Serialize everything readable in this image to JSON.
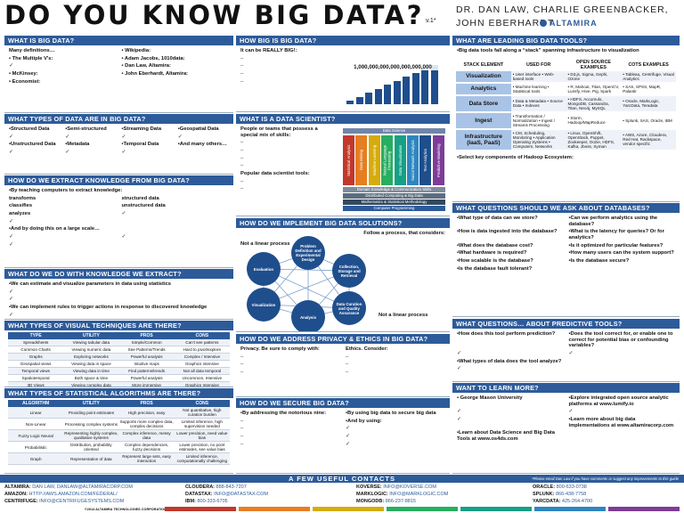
{
  "header": {
    "title": "DO YOU KNOW BIG DATA?",
    "version": "v.1*",
    "authors": "DR. DAN LAW, CHARLIE GREENBACKER, JOHN EBERHARDT",
    "logo": "ALTAMIRA"
  },
  "columns": [
    [
      {
        "title": "WHAT IS BIG DATA?",
        "items": [
          "Many definitions…",
          "• The Multiple V's:",
          "✓",
          "• McKinsey:",
          "• Economist:",
          "• Wikipedia:",
          "• Adam Jacobs, 1010data:",
          "• Dan Law, Altamira:",
          "• John Eberhardt, Altamira:"
        ]
      },
      {
        "title": "WHAT TYPES OF DATA ARE IN BIG DATA?",
        "items": [
          "•Structured Data",
          "•Semi-structured",
          "•Streaming Data",
          "•Geospatial Data",
          "✓",
          "✓",
          "✓",
          "✓",
          "•Unstructured Data",
          "•Metadata",
          "•Temporal Data",
          "•And many others…",
          "✓",
          "✓",
          "✓"
        ]
      },
      {
        "title": "HOW DO WE EXTRACT KNOWLEDGE FROM BIG DATA?",
        "items": [
          "•By teaching computers to extract knowledge:",
          "transforms",
          "structured data",
          "classifies",
          "unstructured data",
          "analyzes",
          "✓",
          "✓",
          "•And by doing this on a large scale…",
          "✓",
          "✓",
          "✓"
        ]
      },
      {
        "title": "WHAT DO WE DO WITH KNOWLEDGE WE EXTRACT?",
        "items": [
          "•We can estimate and visualize parameters in data using statistics",
          "✓",
          "✓",
          "•We can implement rules to trigger actions in response to discovered knowledge",
          "✓"
        ]
      },
      {
        "title": "WHAT TYPES OF VISUAL TECHNIQUES ARE THERE?",
        "table": {
          "headers": [
            "TYPE",
            "UTILITY",
            "PROS",
            "CONS"
          ],
          "rows": [
            [
              "Spreadsheets",
              "Viewing tabular data",
              "Simple/Common",
              "Can't see patterns"
            ],
            [
              "Common Charts",
              "Viewing numeric data",
              "See Patterns/Trends",
              "Hard to pivot/explore"
            ],
            [
              "Graphs",
              "Exploring networks",
              "Powerful analysis",
              "Complex / Intensive"
            ],
            [
              "Geospatial views",
              "Viewing data in space",
              "Intuitive maps",
              "Graphics intensive"
            ],
            [
              "Temporal views",
              "Viewing data in time",
              "Find patterns/trends",
              "Not all data temporal"
            ],
            [
              "Spatiotemporal",
              "Both space & time",
              "Powerful analysis",
              "Uncommon, Intensive"
            ],
            [
              "3D Views",
              "Viewing complex data",
              "More immersive",
              "Graphics Intensive"
            ],
            [
              "Spatiotemporal",
              "Immersive visualization",
              "Intuitive / Powerful",
              "Specialized Hardware"
            ]
          ]
        }
      },
      {
        "title": "WHAT TYPES OF STATISTICAL ALGORITHMS ARE THERE?",
        "table": {
          "headers": [
            "ALGORITHM",
            "UTILITY",
            "PROS",
            "CONS"
          ],
          "rows": [
            [
              "Linear",
              "Providing point estimates",
              "High precision, easy",
              "Not quantitative, high curation burden"
            ],
            [
              "Non-Linear",
              "Processing complex systems",
              "Supports more complex data, complex decisions",
              "Limited inference, high supervision needed"
            ],
            [
              "Fuzzy Logic Neural",
              "Representing highly complex, qualitative systems",
              "Complex inference, messy data",
              "Lower precision, need value bias"
            ],
            [
              "Probabilistic",
              "Distribution, probability oriented",
              "Complex dependencies, fuzzy decisions",
              "Lower precision, no point estimates, see value bias"
            ],
            [
              "Graph",
              "Representation of data",
              "Represent large sets, easy interaction",
              "Limited inference, computationally challenging"
            ]
          ]
        }
      }
    ],
    [
      {
        "title": "HOW BIG IS BIG DATA?",
        "items": [
          "It can be REALLY BIG!:",
          "–",
          "–",
          "–",
          "–"
        ],
        "figure_label": "1,000,000,000,000,000,000,000"
      },
      {
        "title": "WHAT IS A DATA SCIENTIST?",
        "items": [
          "People or teams that possess a special mix of skills:",
          "–",
          "–",
          "–",
          "–",
          "Popular data scientist tools:",
          "–",
          "–"
        ],
        "diagram": {
          "top": "Data Science",
          "pillars": [
            "Statistical Analysis",
            "Data Mining",
            "Machine Learning",
            "Natural Language Processing",
            "Data Visualization",
            "Social Network Analysis",
            "Text Analytics",
            "Predictive Modeling"
          ],
          "base": [
            "Domain Knowledge & Communication Skills",
            "Distributed Computing & Big Data",
            "Mathematics & Statistical Methodology",
            "Computer Programming"
          ]
        }
      },
      {
        "title": "HOW DO WE IMPLEMENT BIG DATA SOLUTIONS?",
        "items": [
          "Follow a process, that considers:"
        ],
        "steps": [
          "Problem Definition and Experimental Design",
          "Collection, Storage and Retrieval",
          "Data Curation and Quality Assurance",
          "Analysis",
          "Visualization",
          "Evaluation"
        ],
        "note": "Not a linear process"
      },
      {
        "title": "HOW DO WE ADDRESS PRIVACY & ETHICS IN BIG DATA?",
        "items": [
          "Privacy. Be sure to comply with:",
          "Ethics. Consider:",
          "–",
          "–",
          "–",
          "–",
          "–",
          "–"
        ]
      },
      {
        "title": "HOW DO WE SECURE BIG DATA?",
        "items": [
          "•By addressing the notorious nine:",
          "–",
          "–",
          "–",
          "–",
          "•By using big data to secure big data",
          "•And by using:",
          "✓",
          "✓",
          "✓"
        ]
      }
    ],
    [
      {
        "title": "WHAT ARE LEADING BIG DATA TOOLS?",
        "items": [
          "•Big data tools fall along a “stack” spanning infrastructure to visualization"
        ],
        "table": {
          "headers": [
            "STACK ELEMENT",
            "USED FOR",
            "OPEN SOURCE EXAMPLES",
            "COTS EXAMPLES"
          ],
          "rows": [
            [
              "Visualization",
              "• User interface • Web-based tools",
              "• D3.js, Sigma, Gephi, Ozone",
              "• Tableau, Centrifuge, Visual Analytics"
            ],
            [
              "Analytics",
              "• Machine learning • Statistical tools",
              "• R, Mahout, Titan, OpenCV, Lumify, Hive, Pig, Spark",
              "• SAS, SPSS, MapR, Palantir"
            ],
            [
              "Data Store",
              "• Data & Metadata • Source Data • Indexes",
              "• HDFS, Accumulo, MongoDB, Cassandra, Titan, Neo4j, MySQL",
              "• Oracle, MarkLogic, YarcData, Teradata"
            ],
            [
              "Ingest",
              "• Transformation / Normalization • Ingest / Streams Processing",
              "• Storm, Hadoop/MapReduce",
              "• Splunk, SAS, Oracle, IBM"
            ],
            [
              "Infrastructure (IaaS, PaaS)",
              "• CM, Scheduling, Monitoring • Application Operating Systems • Computers, Networks",
              "• Linux, OpenShift, OpenStack, Puppet, Zookeeper, Oozie, HDFS, Kafka, Jboss, Xyman",
              "• AWS, Azure, Cloudera, Red Hat, Rackspace, vendor specific"
            ]
          ]
        },
        "note": "•Select key components of Hadoop Ecosystem:"
      },
      {
        "title": "WHAT QUESTIONS SHOULD WE ASK ABOUT DATABASES?",
        "items": [
          "•What type of data can we store?",
          "•How is data ingested into the database?",
          "•What does the database cost?",
          "•What hardware is required?",
          "•How scalable is the database?",
          "•Is the database fault tolerant?",
          "•Can we perform analytics using the database?",
          "•What is the latency for queries? Or for analytics?",
          "•Is it optimized for particular features?",
          "•How many users can the system support?",
          "•Is the database secure?"
        ]
      },
      {
        "title": "WHAT QUESTIONS… ABOUT PREDICTIVE TOOLS?",
        "items": [
          "•How does this tool perform prediction?",
          "✓",
          "•What types of data does the tool analyze?",
          "✓",
          "•Does the tool correct for, or enable one to correct for potential bias or confounding variables?",
          "✓"
        ]
      },
      {
        "title": "WANT TO LEARN MORE?",
        "items": [
          "• George Mason University",
          "✓",
          "✓",
          "•Learn about Data Science and Big Data Tools at www.os4ds.com",
          "•Explore integrated open source analytic platforms at www.lumify.io",
          "✓",
          "•Learn more about big data implementations at www.altamiracorp.com"
        ]
      }
    ]
  ],
  "footer": {
    "title": "A FEW USEFUL CONTACTS",
    "note": "*Please email Dan Law if you have comments or suggest any improvements to this guide",
    "contacts": [
      [
        {
          "org": "ALTAMIRA:",
          "info": "DAN LAW, DANLAW@ALTAMIRACORP.COM"
        },
        {
          "org": "AMAZON:",
          "info": "HTTP://AWS.AMAZON.COM/FEDERAL/"
        },
        {
          "org": "CENTRIFUGE:",
          "info": "INFO@CENTRIFUGESYSTEMS.COM"
        }
      ],
      [
        {
          "org": "CLOUDERA:",
          "info": "888-843-7207"
        },
        {
          "org": "DATASTAX:",
          "info": "INFO@DATASTAX.COM"
        },
        {
          "org": "IBM:",
          "info": "800-333-6705"
        }
      ],
      [
        {
          "org": "KOVERSE:",
          "info": "INFO@KOVERSE.COM"
        },
        {
          "org": "MARKLOGIC:",
          "info": "INFO@MARKLOGIC.COM"
        },
        {
          "org": "MONGODB:",
          "info": "866-237-8815"
        }
      ],
      [
        {
          "org": "ORACLE:",
          "info": "800-633-0738"
        },
        {
          "org": "SPLUNK:",
          "info": "866-438-7758"
        },
        {
          "org": "YARCDATA:",
          "info": "425-264-4700"
        }
      ]
    ],
    "copyright": "©2014 ALTAMIRA TECHNOLOGIES CORPORATION"
  }
}
